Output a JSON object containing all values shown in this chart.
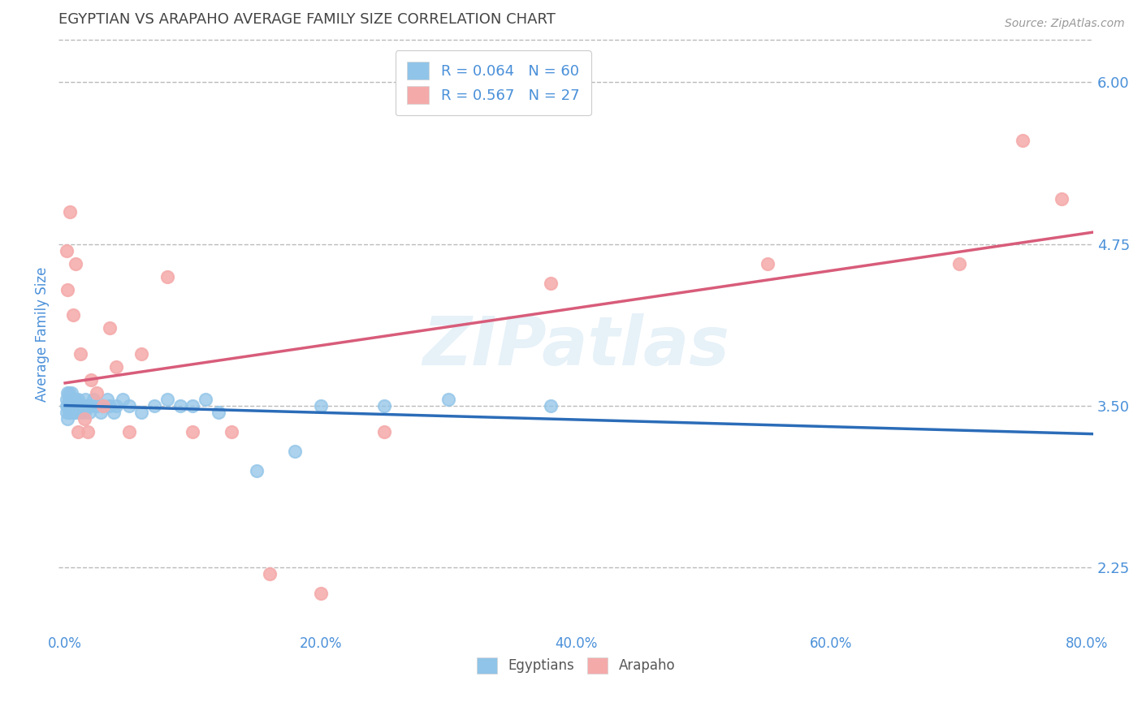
{
  "title": "EGYPTIAN VS ARAPAHO AVERAGE FAMILY SIZE CORRELATION CHART",
  "source": "Source: ZipAtlas.com",
  "ylabel": "Average Family Size",
  "watermark": "ZIPatlas",
  "xlim": [
    -0.005,
    0.805
  ],
  "ylim": [
    1.75,
    6.35
  ],
  "yticks": [
    2.25,
    3.5,
    4.75,
    6.0
  ],
  "xticks": [
    0.0,
    0.2,
    0.4,
    0.6,
    0.8
  ],
  "xtick_labels": [
    "0.0%",
    "20.0%",
    "40.0%",
    "60.0%",
    "80.0%"
  ],
  "legend_labels": [
    "Egyptians",
    "Arapaho"
  ],
  "r_egyptian": 0.064,
  "n_egyptian": 60,
  "r_arapaho": 0.567,
  "n_arapaho": 27,
  "egyptian_color": "#90C4E8",
  "arapaho_color": "#F5AAAA",
  "egyptian_line_color": "#2B6CB8",
  "arapaho_line_color": "#D85C7A",
  "title_color": "#444444",
  "axis_label_color": "#4A90D9",
  "background_color": "#FFFFFF",
  "grid_color": "#BBBBBB",
  "egyptian_scatter": {
    "x": [
      0.001,
      0.001,
      0.001,
      0.002,
      0.002,
      0.002,
      0.003,
      0.003,
      0.003,
      0.003,
      0.004,
      0.004,
      0.004,
      0.005,
      0.005,
      0.005,
      0.006,
      0.006,
      0.007,
      0.007,
      0.007,
      0.008,
      0.008,
      0.009,
      0.009,
      0.01,
      0.01,
      0.011,
      0.012,
      0.013,
      0.014,
      0.015,
      0.016,
      0.017,
      0.018,
      0.019,
      0.02,
      0.022,
      0.025,
      0.028,
      0.03,
      0.033,
      0.035,
      0.038,
      0.04,
      0.045,
      0.05,
      0.06,
      0.07,
      0.08,
      0.09,
      0.1,
      0.11,
      0.12,
      0.15,
      0.18,
      0.2,
      0.25,
      0.3,
      0.38
    ],
    "y": [
      3.5,
      3.55,
      3.45,
      3.6,
      3.4,
      3.5,
      3.55,
      3.45,
      3.5,
      3.6,
      3.5,
      3.55,
      3.45,
      3.5,
      3.55,
      3.6,
      3.5,
      3.45,
      3.55,
      3.5,
      3.45,
      3.5,
      3.55,
      3.5,
      3.45,
      3.5,
      3.55,
      3.5,
      3.45,
      3.5,
      3.5,
      3.45,
      3.55,
      3.5,
      3.5,
      3.45,
      3.5,
      3.55,
      3.5,
      3.45,
      3.5,
      3.55,
      3.5,
      3.45,
      3.5,
      3.55,
      3.5,
      3.45,
      3.5,
      3.55,
      3.5,
      3.5,
      3.55,
      3.45,
      3.0,
      3.15,
      3.5,
      3.5,
      3.55,
      3.5
    ]
  },
  "arapaho_scatter": {
    "x": [
      0.001,
      0.002,
      0.004,
      0.006,
      0.008,
      0.01,
      0.012,
      0.015,
      0.018,
      0.02,
      0.025,
      0.03,
      0.035,
      0.04,
      0.05,
      0.06,
      0.08,
      0.1,
      0.13,
      0.16,
      0.2,
      0.25,
      0.38,
      0.55,
      0.7,
      0.75,
      0.78
    ],
    "y": [
      4.7,
      4.4,
      5.0,
      4.2,
      4.6,
      3.3,
      3.9,
      3.4,
      3.3,
      3.7,
      3.6,
      3.5,
      4.1,
      3.8,
      3.3,
      3.9,
      4.5,
      3.3,
      3.3,
      2.2,
      2.05,
      3.3,
      4.45,
      4.6,
      4.6,
      5.55,
      5.1
    ]
  },
  "egyptian_line_xrange": [
    0.0,
    0.805
  ],
  "arapaho_line_xrange": [
    0.0,
    0.805
  ]
}
